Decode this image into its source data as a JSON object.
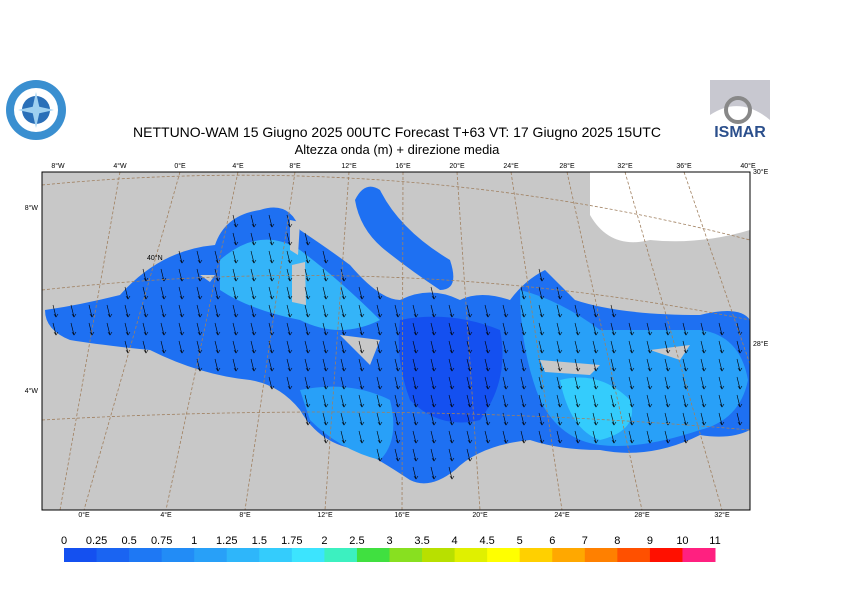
{
  "header": {
    "title": "NETTUNO-WAM  15   Giugno  2025 00UTC Forecast T+63 VT: 17   Giugno  2025 15UTC",
    "subtitle": "Altezza onda (m) + direzione media",
    "logo_right": "ISMAR"
  },
  "map": {
    "top_labels": [
      "8°W",
      "4°W",
      "0°E",
      "4°E",
      "8°E",
      "12°E",
      "16°E",
      "20°E",
      "24°E",
      "28°E",
      "32°E",
      "36°E",
      "40°E"
    ],
    "bottom_labels": [
      "0°E",
      "4°E",
      "8°E",
      "12°E",
      "16°E",
      "20°E",
      "24°E",
      "28°E",
      "32°E"
    ],
    "left_labels": [
      "8°W",
      "4°W"
    ],
    "inner_labels": [
      "40°N"
    ],
    "right_labels": [
      "30°E",
      "28°E"
    ]
  },
  "colorbar": {
    "labels": [
      "0",
      "0.25",
      "0.5",
      "0.75",
      "1",
      "1.25",
      "1.5",
      "1.75",
      "2",
      "2.5",
      "3",
      "3.5",
      "4",
      "4.5",
      "5",
      "6",
      "7",
      "8",
      "9",
      "10",
      "11"
    ],
    "colors": [
      "#1450f0",
      "#1a64f2",
      "#1e78f4",
      "#228cf6",
      "#28a0f8",
      "#2eb6fa",
      "#34ccfc",
      "#3ce4fe",
      "#3cf0c0",
      "#40e040",
      "#88e020",
      "#b8e000",
      "#e0f000",
      "#ffff00",
      "#ffd000",
      "#ffa800",
      "#ff8000",
      "#ff5000",
      "#ff1000",
      "#ff2080"
    ]
  }
}
